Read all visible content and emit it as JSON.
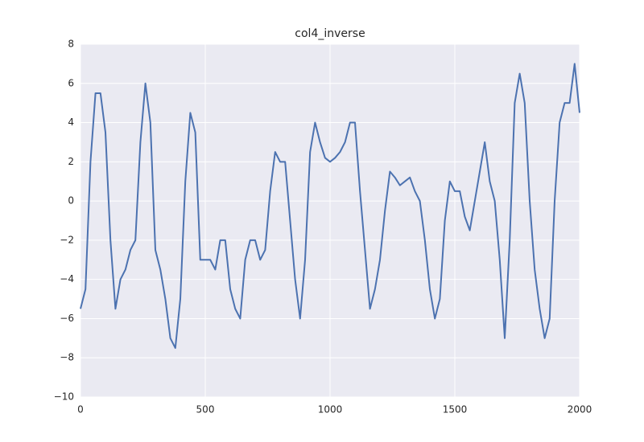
{
  "chart_data": {
    "type": "line",
    "title": "col4_inverse",
    "x": [
      0,
      20,
      40,
      60,
      80,
      100,
      120,
      140,
      160,
      180,
      200,
      220,
      240,
      260,
      280,
      300,
      320,
      340,
      360,
      380,
      400,
      420,
      440,
      460,
      480,
      500,
      520,
      540,
      560,
      580,
      600,
      620,
      640,
      660,
      680,
      700,
      720,
      740,
      760,
      780,
      800,
      820,
      840,
      860,
      880,
      900,
      920,
      940,
      960,
      980,
      1000,
      1020,
      1040,
      1060,
      1080,
      1100,
      1120,
      1140,
      1160,
      1180,
      1200,
      1220,
      1240,
      1260,
      1280,
      1300,
      1320,
      1340,
      1360,
      1380,
      1400,
      1420,
      1440,
      1460,
      1480,
      1500,
      1520,
      1540,
      1560,
      1580,
      1600,
      1620,
      1640,
      1660,
      1680,
      1700,
      1720,
      1740,
      1760,
      1780,
      1800,
      1820,
      1840,
      1860,
      1880,
      1900,
      1920,
      1940,
      1960,
      1980,
      2000
    ],
    "series": [
      {
        "color": "#4c72b0",
        "values": [
          -5.5,
          -4.5,
          2,
          5.5,
          5.5,
          3.5,
          -2,
          -5.5,
          -4,
          -3.5,
          -2.5,
          -2,
          3,
          6,
          4,
          -2.5,
          -3.5,
          -5,
          -7,
          -7.5,
          -5,
          1,
          4.5,
          3.5,
          -3,
          -3,
          -3,
          -3.5,
          -2,
          -2,
          -4.5,
          -5.5,
          -6,
          -3,
          -2,
          -2,
          -3,
          -2.5,
          0.5,
          2.5,
          2,
          2,
          -1,
          -4,
          -6,
          -3,
          2.5,
          4,
          3,
          2.2,
          2,
          2.2,
          2.5,
          3,
          4,
          4,
          0.5,
          -2.5,
          -5.5,
          -4.5,
          -3,
          -0.5,
          1.5,
          1.2,
          0.8,
          1,
          1.2,
          0.5,
          0,
          -2,
          -4.5,
          -6,
          -5,
          -1,
          1,
          0.5,
          0.5,
          -0.8,
          -1.5,
          0,
          1.5,
          3,
          1,
          0,
          -3,
          -7,
          -2,
          5,
          6.5,
          5,
          0,
          -3.5,
          -5.5,
          -7,
          -6,
          0,
          4,
          5,
          5,
          7,
          4.5
        ]
      }
    ],
    "xlim": [
      0,
      2000
    ],
    "xticks": [
      0,
      500,
      1000,
      1500,
      2000
    ],
    "ylim": [
      -10,
      8
    ],
    "yticks": [
      {
        "value": -10,
        "label": "−10"
      },
      {
        "value": -8,
        "label": "−8"
      },
      {
        "value": -6,
        "label": "−6"
      },
      {
        "value": -4,
        "label": "−4"
      },
      {
        "value": -2,
        "label": "−2"
      },
      0,
      2,
      4,
      6,
      8
    ],
    "grid": true
  }
}
